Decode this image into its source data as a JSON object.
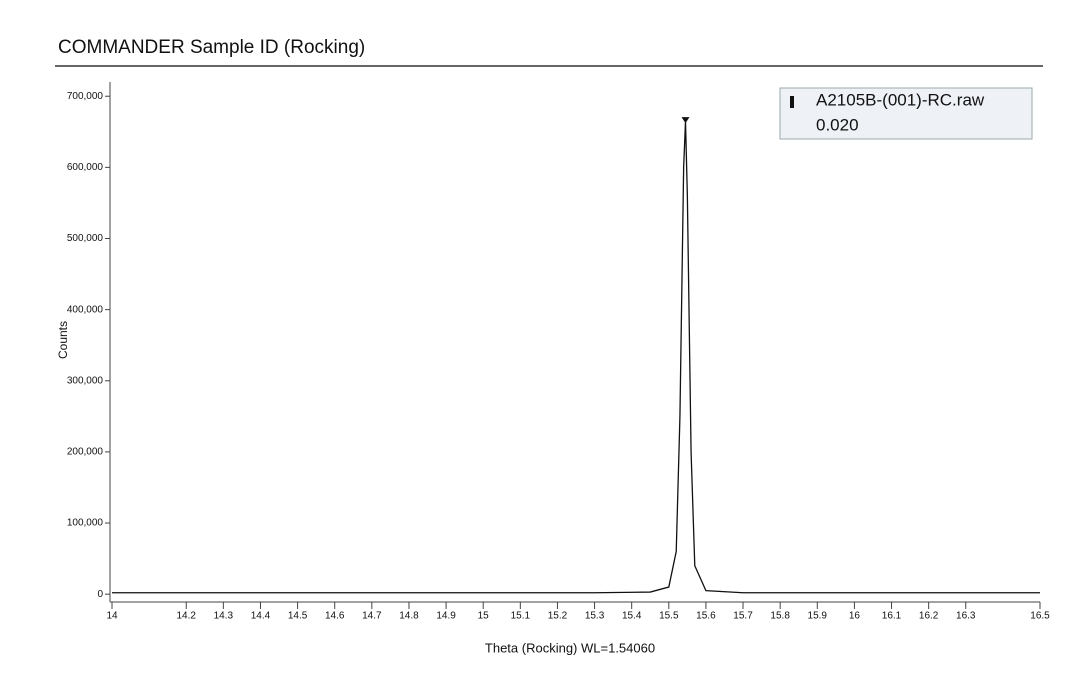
{
  "chart_data": {
    "type": "line",
    "title": "COMMANDER Sample ID (Rocking)",
    "x_label": "Theta (Rocking) WL=1.54060",
    "y_label": "Counts",
    "legend_note": "0.020",
    "legend": "top-right",
    "x": [
      14,
      15.3,
      15.45,
      15.5,
      15.52,
      15.53,
      15.54,
      15.545,
      15.55,
      15.56,
      15.57,
      15.6,
      15.7,
      16.5
    ],
    "series": [
      {
        "name": "A2105B-(001)-RC.raw",
        "color": "#111111",
        "values": [
          2000,
          2000,
          3000,
          10000,
          60000,
          250000,
          600000,
          665000,
          560000,
          200000,
          40000,
          5000,
          2000,
          2000
        ]
      }
    ],
    "xlim": [
      14,
      16.5
    ],
    "xticks": [
      14,
      14.2,
      14.3,
      14.4,
      14.5,
      14.6,
      14.7,
      14.8,
      14.9,
      15,
      15.1,
      15.2,
      15.3,
      15.4,
      15.5,
      15.6,
      15.7,
      15.8,
      15.9,
      16,
      16.1,
      16.2,
      16.3,
      16.5
    ],
    "ylim": [
      -11000,
      720000
    ],
    "yticks": [
      0,
      {
        "value": 100000,
        "label": "100,000"
      },
      {
        "value": 200000,
        "label": "200,000"
      },
      {
        "value": 300000,
        "label": "300,000"
      },
      {
        "value": 400000,
        "label": "400,000"
      },
      {
        "value": 500000,
        "label": "500,000"
      },
      {
        "value": 600000,
        "label": "600,000"
      },
      {
        "value": 700000,
        "label": "700,000"
      }
    ]
  }
}
